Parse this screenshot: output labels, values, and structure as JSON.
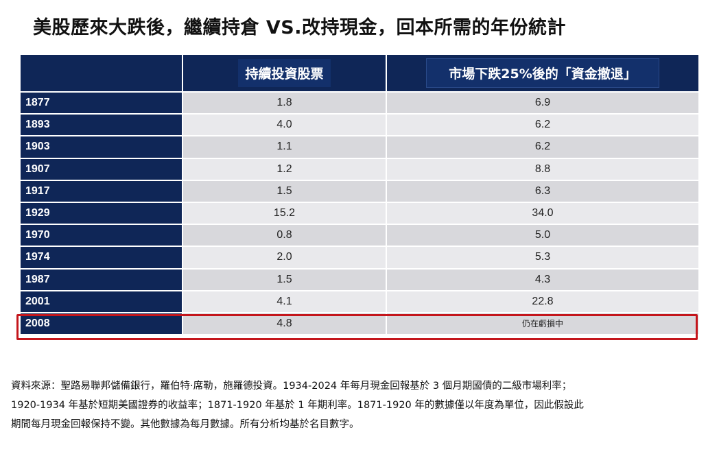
{
  "title": "美股歷來大跌後，繼續持倉 VS.改持現金，回本所需的年份統計",
  "table": {
    "headers": {
      "year": "",
      "stay_invested": "持續投資股票",
      "move_to_cash": "市場下跌25%後的「資金撤退」"
    },
    "rows": [
      {
        "year": "1877",
        "stay_invested": "1.8",
        "move_to_cash": "6.9"
      },
      {
        "year": "1893",
        "stay_invested": "4.0",
        "move_to_cash": "6.2"
      },
      {
        "year": "1903",
        "stay_invested": "1.1",
        "move_to_cash": "6.2"
      },
      {
        "year": "1907",
        "stay_invested": "1.2",
        "move_to_cash": "8.8"
      },
      {
        "year": "1917",
        "stay_invested": "1.5",
        "move_to_cash": "6.3"
      },
      {
        "year": "1929",
        "stay_invested": "15.2",
        "move_to_cash": "34.0"
      },
      {
        "year": "1970",
        "stay_invested": "0.8",
        "move_to_cash": "5.0"
      },
      {
        "year": "1974",
        "stay_invested": "2.0",
        "move_to_cash": "5.3"
      },
      {
        "year": "1987",
        "stay_invested": "1.5",
        "move_to_cash": "4.3"
      },
      {
        "year": "2001",
        "stay_invested": "4.1",
        "move_to_cash": "22.8"
      },
      {
        "year": "2008",
        "stay_invested": "4.8",
        "move_to_cash": "仍在虧損中"
      }
    ],
    "highlight_color": "#c4161c",
    "header_color": "#0f2657"
  },
  "source": {
    "line1": "資料來源：聖路易聯邦儲備銀行，羅伯特·席勒，施羅德投資。1934-2024 年每月現金回報基於 3 個月期國債的二級市場利率；",
    "line2": "1920-1934 年基於短期美國證券的收益率；1871-1920 年基於 1 年期利率。1871-1920 年的數據僅以年度為單位，因此假設此",
    "line3": "期間每月現金回報保持不變。其他數據為每月數據。所有分析均基於名目數字。"
  }
}
